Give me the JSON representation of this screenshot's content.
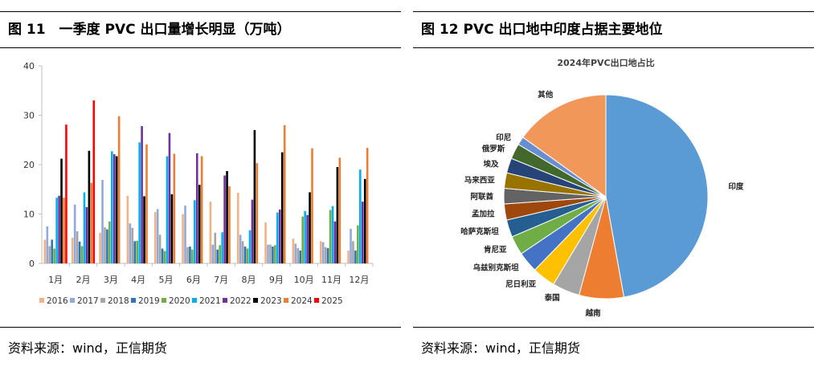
{
  "left_panel": {
    "figure_title": "图 11　一季度 PVC 出口量增长明显（万吨）",
    "source": "资料来源：wind，正信期货"
  },
  "right_panel": {
    "figure_title": "图 12 PVC 出口地中印度占据主要地位",
    "source": "资料来源：wind，正信期货"
  },
  "chart_data": [
    {
      "type": "bar",
      "title": "",
      "xlabel": "",
      "ylabel": "",
      "ylim": [
        0,
        40
      ],
      "yticks": [
        0,
        10,
        20,
        30,
        40
      ],
      "grid": false,
      "legend_position": "bottom",
      "categories": [
        "1月",
        "2月",
        "3月",
        "4月",
        "5月",
        "6月",
        "7月",
        "8月",
        "9月",
        "10月",
        "11月",
        "12月"
      ],
      "series": [
        {
          "name": "2016",
          "color": "#f4b183",
          "values": [
            4.8,
            5.2,
            6.2,
            13.7,
            10.4,
            10.0,
            12.5,
            14.3,
            8.3,
            5.0,
            4.5,
            2.6
          ]
        },
        {
          "name": "2017",
          "color": "#8faadc",
          "values": [
            7.5,
            11.9,
            16.9,
            8.1,
            11.0,
            11.7,
            3.8,
            5.8,
            3.8,
            4.0,
            4.3,
            7.0
          ]
        },
        {
          "name": "2018",
          "color": "#a5a5a5",
          "values": [
            3.5,
            6.5,
            7.3,
            7.2,
            5.8,
            3.3,
            6.2,
            4.5,
            3.8,
            3.1,
            3.3,
            4.5
          ]
        },
        {
          "name": "2019",
          "color": "#2e75b6",
          "values": [
            4.8,
            4.4,
            6.9,
            4.5,
            3.0,
            3.4,
            2.8,
            3.4,
            3.4,
            2.6,
            3.1,
            2.6
          ]
        },
        {
          "name": "2020",
          "color": "#70ad47",
          "values": [
            3.0,
            3.5,
            8.5,
            4.6,
            2.5,
            2.8,
            3.7,
            3.0,
            3.7,
            9.5,
            10.8,
            7.7
          ]
        },
        {
          "name": "2021",
          "color": "#00b0f0",
          "values": [
            13.3,
            14.4,
            22.7,
            24.5,
            21.7,
            12.8,
            6.3,
            6.7,
            10.3,
            10.6,
            11.6,
            19.0
          ]
        },
        {
          "name": "2022",
          "color": "#7030a0",
          "values": [
            13.7,
            11.4,
            22.1,
            27.8,
            26.4,
            22.3,
            17.8,
            12.9,
            10.9,
            9.8,
            8.5,
            12.5
          ]
        },
        {
          "name": "2023",
          "color": "#000000",
          "values": [
            21.2,
            22.8,
            21.7,
            13.6,
            14.0,
            15.9,
            18.7,
            27.0,
            22.5,
            14.4,
            19.5,
            17.1
          ]
        },
        {
          "name": "2024",
          "color": "#ed7d31",
          "values": [
            13.3,
            16.3,
            29.8,
            24.1,
            22.2,
            21.7,
            15.6,
            20.3,
            28.0,
            23.3,
            21.4,
            23.4
          ]
        },
        {
          "name": "2025",
          "color": "#ff0000",
          "values": [
            28.1,
            33.0,
            null,
            null,
            null,
            null,
            null,
            null,
            null,
            null,
            null,
            null
          ]
        }
      ]
    },
    {
      "type": "pie",
      "title": "2024年PVC出口地占比",
      "categories": [
        "印度",
        "越南",
        "泰国",
        "尼日利亚",
        "乌兹别克斯坦",
        "肯尼亚",
        "哈萨克斯坦",
        "孟加拉",
        "阿联酋",
        "马来西亚",
        "埃及",
        "俄罗斯",
        "印尼",
        "其他"
      ],
      "values": [
        50.0,
        7.5,
        4.6,
        3.9,
        3.5,
        3.2,
        2.9,
        2.7,
        2.6,
        2.6,
        2.5,
        2.6,
        1.4,
        16.0
      ],
      "colors": [
        "#5b9bd5",
        "#ed7d31",
        "#a5a5a5",
        "#ffc000",
        "#4472c4",
        "#70ad47",
        "#255e91",
        "#9e480e",
        "#636363",
        "#997300",
        "#264478",
        "#43682b",
        "#698ed0",
        "#f1975a"
      ],
      "legend_position": "none"
    }
  ]
}
